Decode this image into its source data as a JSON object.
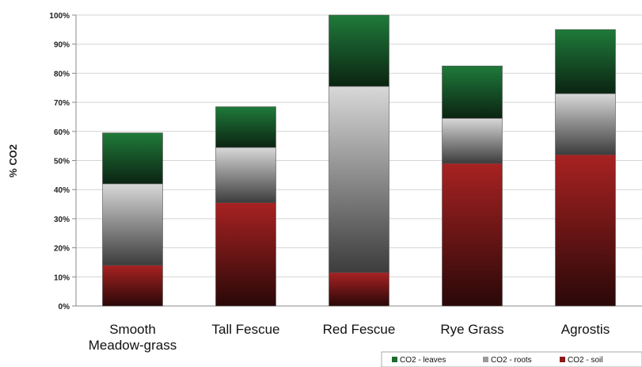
{
  "chart_data": {
    "type": "bar",
    "stacked": true,
    "percent_axis": true,
    "title": "",
    "xlabel": "",
    "ylabel": "% CO2",
    "ylim": [
      0,
      100
    ],
    "yticks": [
      "0%",
      "10%",
      "20%",
      "30%",
      "40%",
      "50%",
      "60%",
      "70%",
      "80%",
      "90%",
      "100%"
    ],
    "categories": [
      "Smooth\nMeadow-grass",
      "Tall Fescue",
      "Red Fescue",
      "Rye Grass",
      "Agrostis"
    ],
    "series": [
      {
        "name": "CO2 - soil",
        "color": "#8b1a1a",
        "values": [
          14,
          35.5,
          11.5,
          49,
          52
        ]
      },
      {
        "name": "CO2 - roots",
        "color": "#9a9a9a",
        "values": [
          28,
          19,
          64,
          15.5,
          21
        ]
      },
      {
        "name": "CO2 - leaves",
        "color": "#1f6b32",
        "values": [
          17.5,
          14,
          25,
          18,
          22
        ]
      }
    ],
    "legend_order": [
      "CO2 - leaves",
      "CO2 - roots",
      "CO2 - soil"
    ],
    "legend_position": "bottom-right",
    "grid": true
  }
}
